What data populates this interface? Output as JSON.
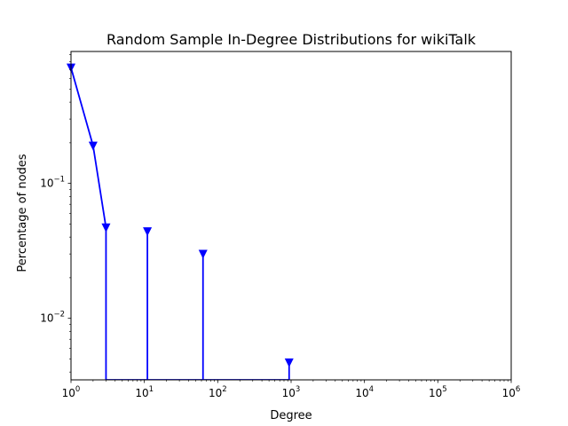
{
  "chart_data": {
    "type": "line",
    "title": "Random Sample In-Degree Distributions for wikiTalk",
    "xlabel": "Degree",
    "ylabel": "Percentage of nodes",
    "xscale": "log",
    "yscale": "log",
    "xlim": [
      1,
      1000000
    ],
    "ylim": [
      0.0035,
      0.95
    ],
    "grid": false,
    "line_color": "#0000ff",
    "marker": "triangle-down",
    "x_ticks": [
      {
        "value": 1,
        "base": "10",
        "exp": "0"
      },
      {
        "value": 10,
        "base": "10",
        "exp": "1"
      },
      {
        "value": 100,
        "base": "10",
        "exp": "2"
      },
      {
        "value": 1000,
        "base": "10",
        "exp": "3"
      },
      {
        "value": 10000,
        "base": "10",
        "exp": "4"
      },
      {
        "value": 100000,
        "base": "10",
        "exp": "5"
      },
      {
        "value": 1000000,
        "base": "10",
        "exp": "6"
      }
    ],
    "y_ticks": [
      {
        "value": 0.1,
        "base": "10",
        "exp": "−1"
      },
      {
        "value": 0.01,
        "base": "10",
        "exp": "−2"
      }
    ],
    "series": [
      {
        "points": [
          {
            "x": 1,
            "y": 0.72
          },
          {
            "x": 2,
            "y": 0.19
          },
          {
            "x": 3,
            "y": 0.047
          },
          {
            "x": 3,
            "y": 0.0035
          },
          {
            "x": 11,
            "y": 0.0035
          },
          {
            "x": 11,
            "y": 0.044
          },
          {
            "x": 11,
            "y": 0.0035
          },
          {
            "x": 63,
            "y": 0.0035
          },
          {
            "x": 63,
            "y": 0.03
          },
          {
            "x": 63,
            "y": 0.0035
          },
          {
            "x": 940,
            "y": 0.0035
          },
          {
            "x": 940,
            "y": 0.0047
          }
        ],
        "markers": [
          {
            "x": 1,
            "y": 0.72
          },
          {
            "x": 2,
            "y": 0.19
          },
          {
            "x": 3,
            "y": 0.047
          },
          {
            "x": 11,
            "y": 0.044
          },
          {
            "x": 63,
            "y": 0.03
          },
          {
            "x": 940,
            "y": 0.0047
          }
        ]
      }
    ]
  }
}
